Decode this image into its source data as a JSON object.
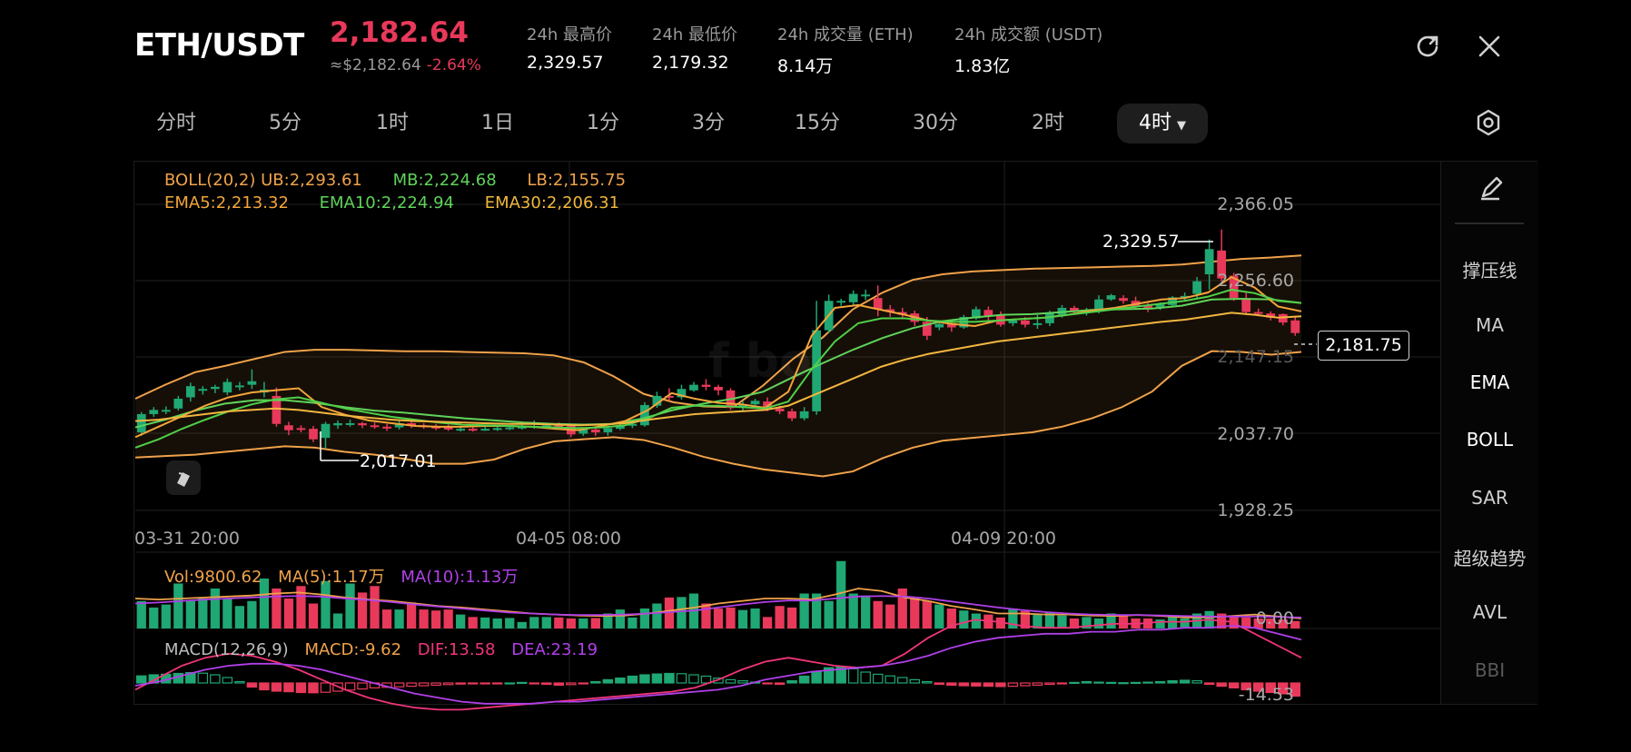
{
  "header": {
    "pair": "ETH/USDT",
    "price": "2,182.64",
    "usd_price": "≈$2,182.64",
    "change": "-2.64%",
    "stats": [
      {
        "label": "24h 最高价",
        "value": "2,329.57"
      },
      {
        "label": "24h 最低价",
        "value": "2,179.32"
      },
      {
        "label": "24h 成交量 (ETH)",
        "value": "8.14万"
      },
      {
        "label": "24h 成交额 (USDT)",
        "value": "1.83亿"
      }
    ]
  },
  "intervals": [
    "分时",
    "5分",
    "1时",
    "1日",
    "1分",
    "3分",
    "15分",
    "30分",
    "2时",
    "4时"
  ],
  "active_interval": "4时",
  "indicators": [
    "撑压线",
    "MA",
    "EMA",
    "BOLL",
    "SAR",
    "超级趋势",
    "AVL",
    "BBI"
  ],
  "legend": {
    "boll": "BOLL(20,2)",
    "boll_ub": "UB:2,293.61",
    "boll_mb": "MB:2,224.68",
    "boll_lb": "LB:2,155.75",
    "ema5": "EMA5:2,213.32",
    "ema10": "EMA10:2,224.94",
    "ema30": "EMA30:2,206.31",
    "vol": "Vol:9800.62",
    "vol_ma5": "MA(5):1.17万",
    "vol_ma10": "MA(10):1.13万",
    "macd": "MACD(12,26,9)",
    "macd_val": "MACD:-9.62",
    "dif": "DIF:13.58",
    "dea": "DEA:23.19"
  },
  "annotations": {
    "high": "2,329.57",
    "low": "2,017.01",
    "current": "2,181.75"
  },
  "y_labels": [
    "2,366.05",
    "2,256.60",
    "2,147.15",
    "2,037.70",
    "1,928.25"
  ],
  "vol_y_label": "0.00",
  "macd_y_label": "-14.53",
  "x_labels": [
    "03-31 20:00",
    "04-05 08:00",
    "04-09 20:00"
  ],
  "colors": {
    "up": "#1fa774",
    "down": "#e8395a",
    "boll": "#f0a24a",
    "ema_green": "#5fd35a",
    "ema_orange": "#f2a53a",
    "purple": "#b040e8",
    "pink": "#f0357a"
  },
  "chart_data": {
    "type": "candlestick",
    "ylim": [
      1928.25,
      2366.05
    ],
    "x_tick_labels": [
      "03-31 20:00",
      "04-05 08:00",
      "04-09 20:00"
    ],
    "candles": [
      [
        2040,
        2066,
        2035,
        2069
      ],
      [
        2066,
        2072,
        2062,
        2076
      ],
      [
        2070,
        2072,
        2066,
        2077
      ],
      [
        2074,
        2088,
        2071,
        2092
      ],
      [
        2090,
        2106,
        2084,
        2111
      ],
      [
        2100,
        2102,
        2094,
        2106
      ],
      [
        2102,
        2105,
        2096,
        2108
      ],
      [
        2097,
        2112,
        2093,
        2117
      ],
      [
        2106,
        2107,
        2100,
        2112
      ],
      [
        2108,
        2113,
        2102,
        2130
      ],
      [
        2097,
        2101,
        2090,
        2112
      ],
      [
        2092,
        2052,
        2048,
        2104
      ],
      [
        2050,
        2043,
        2036,
        2055
      ],
      [
        2046,
        2044,
        2040,
        2050
      ],
      [
        2045,
        2030,
        2026,
        2049
      ],
      [
        2032,
        2052,
        2017,
        2055
      ],
      [
        2050,
        2053,
        2045,
        2057
      ],
      [
        2053,
        2053,
        2048,
        2058
      ],
      [
        2053,
        2050,
        2046,
        2055
      ],
      [
        2050,
        2048,
        2045,
        2054
      ],
      [
        2048,
        2046,
        2042,
        2052
      ],
      [
        2047,
        2053,
        2044,
        2057
      ],
      [
        2053,
        2050,
        2046,
        2055
      ],
      [
        2050,
        2048,
        2045,
        2053
      ],
      [
        2048,
        2047,
        2043,
        2052
      ],
      [
        2047,
        2044,
        2042,
        2051
      ],
      [
        2045,
        2045,
        2041,
        2049
      ],
      [
        2045,
        2044,
        2041,
        2048
      ],
      [
        2044,
        2045,
        2042,
        2048
      ],
      [
        2045,
        2046,
        2042,
        2049
      ],
      [
        2046,
        2047,
        2043,
        2050
      ],
      [
        2047,
        2048,
        2044,
        2051
      ],
      [
        2048,
        2049,
        2045,
        2057
      ],
      [
        2049,
        2050,
        2046,
        2053
      ],
      [
        2050,
        2049,
        2046,
        2054
      ],
      [
        2049,
        2037,
        2033,
        2052
      ],
      [
        2038,
        2044,
        2035,
        2047
      ],
      [
        2044,
        2040,
        2035,
        2047
      ],
      [
        2040,
        2046,
        2035,
        2049
      ],
      [
        2045,
        2050,
        2043,
        2054
      ],
      [
        2050,
        2052,
        2046,
        2056
      ],
      [
        2050,
        2079,
        2048,
        2083
      ],
      [
        2078,
        2092,
        2075,
        2098
      ],
      [
        2092,
        2090,
        2085,
        2103
      ],
      [
        2090,
        2102,
        2087,
        2108
      ],
      [
        2100,
        2108,
        2098,
        2112
      ],
      [
        2108,
        2105,
        2100,
        2116
      ],
      [
        2105,
        2100,
        2093,
        2108
      ],
      [
        2100,
        2075,
        2072,
        2103
      ],
      [
        2075,
        2080,
        2071,
        2084
      ],
      [
        2080,
        2085,
        2077,
        2088
      ],
      [
        2084,
        2074,
        2070,
        2090
      ],
      [
        2074,
        2070,
        2066,
        2078
      ],
      [
        2070,
        2060,
        2056,
        2074
      ],
      [
        2060,
        2070,
        2057,
        2076
      ],
      [
        2070,
        2186,
        2065,
        2228
      ],
      [
        2186,
        2228,
        2182,
        2237
      ],
      [
        2226,
        2228,
        2221,
        2231
      ],
      [
        2226,
        2238,
        2220,
        2243
      ],
      [
        2236,
        2237,
        2229,
        2244
      ],
      [
        2232,
        2216,
        2206,
        2250
      ],
      [
        2216,
        2212,
        2205,
        2222
      ],
      [
        2212,
        2208,
        2202,
        2218
      ],
      [
        2210,
        2198,
        2192,
        2214
      ],
      [
        2198,
        2178,
        2172,
        2205
      ],
      [
        2190,
        2195,
        2186,
        2197
      ],
      [
        2196,
        2190,
        2184,
        2200
      ],
      [
        2190,
        2205,
        2188,
        2208
      ],
      [
        2203,
        2216,
        2201,
        2220
      ],
      [
        2215,
        2206,
        2200,
        2220
      ],
      [
        2208,
        2194,
        2191,
        2213
      ],
      [
        2196,
        2200,
        2192,
        2202
      ],
      [
        2200,
        2194,
        2190,
        2205
      ],
      [
        2194,
        2196,
        2188,
        2208
      ],
      [
        2196,
        2210,
        2192,
        2214
      ],
      [
        2208,
        2218,
        2204,
        2222
      ],
      [
        2218,
        2214,
        2210,
        2221
      ],
      [
        2214,
        2215,
        2207,
        2218
      ],
      [
        2214,
        2230,
        2210,
        2236
      ],
      [
        2230,
        2236,
        2228,
        2238
      ],
      [
        2232,
        2228,
        2224,
        2236
      ],
      [
        2228,
        2220,
        2216,
        2234
      ],
      [
        2222,
        2218,
        2212,
        2225
      ],
      [
        2219,
        2223,
        2215,
        2226
      ],
      [
        2222,
        2233,
        2219,
        2235
      ],
      [
        2235,
        2235,
        2228,
        2240
      ],
      [
        2238,
        2256,
        2232,
        2262
      ],
      [
        2266,
        2302,
        2244,
        2316
      ],
      [
        2300,
        2260,
        2256,
        2330
      ],
      [
        2264,
        2232,
        2228,
        2268
      ],
      [
        2232,
        2212,
        2208,
        2240
      ],
      [
        2212,
        2210,
        2206,
        2217
      ],
      [
        2210,
        2204,
        2200,
        2213
      ],
      [
        2209,
        2197,
        2193,
        2210
      ],
      [
        2200,
        2182,
        2178,
        2205
      ]
    ],
    "boll": {
      "ub": [
        2088,
        2108,
        2126,
        2135,
        2145,
        2155,
        2158,
        2158,
        2157,
        2156,
        2156,
        2155,
        2154,
        2153,
        2150,
        2140,
        2120,
        2095,
        2083,
        2077,
        2076,
        2107,
        2145,
        2176,
        2216,
        2240,
        2258,
        2266,
        2270,
        2272,
        2274,
        2275,
        2276,
        2277,
        2278,
        2280,
        2284,
        2288,
        2290,
        2293
      ],
      "mb": [
        2047,
        2058,
        2071,
        2081,
        2086,
        2086,
        2082,
        2076,
        2071,
        2068,
        2064,
        2060,
        2057,
        2054,
        2052,
        2051,
        2052,
        2060,
        2072,
        2081,
        2088,
        2098,
        2119,
        2139,
        2158,
        2175,
        2189,
        2199,
        2204,
        2208,
        2209,
        2212,
        2215,
        2216,
        2217,
        2221,
        2230,
        2231,
        2230,
        2225
      ],
      "lb": [
        2004,
        2006,
        2008,
        2012,
        2016,
        2020,
        2018,
        2012,
        2008,
        2002,
        1995,
        1995,
        2001,
        2016,
        2027,
        2030,
        2033,
        2029,
        2018,
        2005,
        1995,
        1987,
        1982,
        1977,
        1984,
        2003,
        2018,
        2028,
        2032,
        2036,
        2040,
        2048,
        2060,
        2076,
        2098,
        2135,
        2156,
        2155,
        2151,
        2155
      ]
    },
    "ema": {
      "ema5": [
        2033,
        2048,
        2063,
        2078,
        2090,
        2097,
        2100,
        2103,
        2076,
        2065,
        2057,
        2053,
        2049,
        2048,
        2048,
        2049,
        2049,
        2048,
        2045,
        2043,
        2049,
        2056,
        2072,
        2096,
        2088,
        2082,
        2080,
        2075,
        2098,
        2178,
        2218,
        2222,
        2215,
        2208,
        2200,
        2195,
        2192,
        2200,
        2202,
        2204,
        2208,
        2214,
        2218,
        2224,
        2230,
        2232,
        2240,
        2262,
        2247,
        2220,
        2213
      ],
      "ema10": [
        2018,
        2030,
        2045,
        2058,
        2070,
        2080,
        2087,
        2090,
        2082,
        2074,
        2068,
        2062,
        2058,
        2054,
        2051,
        2050,
        2049,
        2048,
        2047,
        2046,
        2047,
        2050,
        2060,
        2075,
        2078,
        2078,
        2076,
        2074,
        2084,
        2130,
        2170,
        2196,
        2203,
        2203,
        2200,
        2198,
        2198,
        2200,
        2202,
        2204,
        2208,
        2212,
        2216,
        2220,
        2224,
        2228,
        2234,
        2244,
        2239,
        2228,
        2225
      ],
      "ema30": [
        2056,
        2058,
        2062,
        2066,
        2070,
        2072,
        2074,
        2072,
        2068,
        2064,
        2061,
        2058,
        2056,
        2055,
        2054,
        2053,
        2052,
        2052,
        2051,
        2050,
        2051,
        2053,
        2058,
        2062,
        2066,
        2068,
        2070,
        2072,
        2078,
        2092,
        2106,
        2120,
        2134,
        2144,
        2152,
        2158,
        2164,
        2170,
        2174,
        2178,
        2182,
        2186,
        2190,
        2194,
        2198,
        2201,
        2206,
        2211,
        2208,
        2204,
        2206
      ]
    },
    "volume": [
      0.55,
      0.42,
      0.48,
      0.9,
      0.55,
      0.6,
      0.8,
      0.6,
      0.45,
      0.55,
      1.0,
      0.8,
      0.6,
      0.85,
      0.5,
      0.95,
      0.3,
      0.9,
      0.72,
      0.85,
      0.38,
      0.38,
      0.52,
      0.38,
      0.36,
      0.38,
      0.28,
      0.23,
      0.22,
      0.2,
      0.21,
      0.13,
      0.23,
      0.23,
      0.22,
      0.2,
      0.2,
      0.21,
      0.3,
      0.38,
      0.22,
      0.4,
      0.5,
      0.62,
      0.63,
      0.7,
      0.5,
      0.4,
      0.42,
      0.37,
      0.4,
      0.23,
      0.45,
      0.42,
      0.7,
      0.7,
      0.55,
      1.35,
      0.7,
      0.66,
      0.55,
      0.48,
      0.8,
      0.6,
      0.55,
      0.48,
      0.4,
      0.36,
      0.3,
      0.28,
      0.22,
      0.4,
      0.35,
      0.3,
      0.32,
      0.26,
      0.2,
      0.23,
      0.2,
      0.3,
      0.26,
      0.2,
      0.2,
      0.18,
      0.25,
      0.2,
      0.3,
      0.35,
      0.3,
      0.25,
      0.22,
      0.2,
      0.2,
      0.18,
      0.15
    ],
    "vol_ma5": [
      0.6,
      0.58,
      0.6,
      0.62,
      0.64,
      0.66,
      0.7,
      0.72,
      0.68,
      0.62,
      0.58,
      0.55,
      0.5,
      0.45,
      0.42,
      0.38,
      0.34,
      0.3,
      0.28,
      0.26,
      0.25,
      0.26,
      0.3,
      0.36,
      0.42,
      0.5,
      0.55,
      0.6,
      0.6,
      0.58,
      0.68,
      0.8,
      0.75,
      0.62,
      0.55,
      0.45,
      0.38,
      0.3,
      0.3,
      0.28,
      0.28,
      0.26,
      0.25,
      0.27,
      0.25,
      0.22,
      0.22,
      0.25,
      0.28,
      0.24,
      0.2
    ],
    "vol_ma10": [
      0.5,
      0.52,
      0.55,
      0.58,
      0.6,
      0.62,
      0.64,
      0.65,
      0.64,
      0.6,
      0.57,
      0.53,
      0.48,
      0.44,
      0.4,
      0.36,
      0.32,
      0.3,
      0.28,
      0.27,
      0.27,
      0.28,
      0.3,
      0.33,
      0.36,
      0.42,
      0.48,
      0.53,
      0.56,
      0.56,
      0.6,
      0.64,
      0.65,
      0.64,
      0.6,
      0.54,
      0.48,
      0.42,
      0.37,
      0.33,
      0.3,
      0.28,
      0.27,
      0.27,
      0.26,
      0.25,
      0.24,
      0.24,
      0.24,
      0.23,
      0.22
    ],
    "macd_hist": [
      2.6,
      3.0,
      3.2,
      3.5,
      3.8,
      3.6,
      3.0,
      2.0,
      0.5,
      -1.5,
      -2.5,
      -3.0,
      -3.2,
      -3.5,
      -3.6,
      -3.4,
      -3.0,
      -2.6,
      -2.2,
      -1.8,
      -1.6,
      -1.4,
      -1.2,
      -1.0,
      -0.8,
      -0.6,
      -0.4,
      -0.3,
      -0.2,
      -0.1,
      0.0,
      0.2,
      -0.3,
      -0.5,
      -0.8,
      -0.6,
      -0.3,
      0.5,
      1.2,
      1.8,
      2.5,
      3.0,
      3.3,
      3.5,
      3.4,
      3.0,
      2.5,
      1.8,
      1.2,
      0.8,
      0.3,
      -0.3,
      -0.5,
      0.8,
      2.5,
      4.2,
      5.6,
      5.8,
      5.2,
      4.0,
      3.2,
      2.6,
      2.0,
      1.2,
      0.5,
      -0.5,
      -0.8,
      -1.0,
      -1.1,
      -1.2,
      -1.3,
      -1.2,
      -1.0,
      -0.8,
      -0.5,
      -0.2,
      0.2,
      0.5,
      0.3,
      0.2,
      0.1,
      0.2,
      0.3,
      0.5,
      0.8,
      1.0,
      0.8,
      -0.5,
      -1.2,
      -1.8,
      -2.5,
      -3.0,
      -3.5,
      -4.0,
      -4.8
    ],
    "dif": [
      -2,
      4,
      10,
      14,
      16,
      15,
      12,
      8,
      3,
      -2,
      -6,
      -9,
      -11,
      -12,
      -12,
      -11,
      -10,
      -9,
      -8,
      -7,
      -6,
      -5,
      -4,
      -3,
      -1,
      3,
      8,
      12,
      14,
      12,
      10,
      9,
      10,
      16,
      24,
      30,
      33,
      32,
      30,
      29,
      29,
      30,
      31,
      31,
      32,
      32,
      33,
      32,
      26,
      20,
      14
    ],
    "dea": [
      0,
      2,
      5,
      8,
      10,
      11,
      11,
      10,
      8,
      5,
      2,
      -1,
      -4,
      -6,
      -8,
      -9,
      -9,
      -9,
      -8,
      -8,
      -7,
      -6,
      -5,
      -4,
      -3,
      -2,
      0,
      3,
      5,
      7,
      8,
      9,
      10,
      12,
      15,
      19,
      22,
      24,
      25,
      26,
      26,
      27,
      27,
      28,
      28,
      29,
      29,
      30,
      29,
      26,
      23
    ]
  }
}
